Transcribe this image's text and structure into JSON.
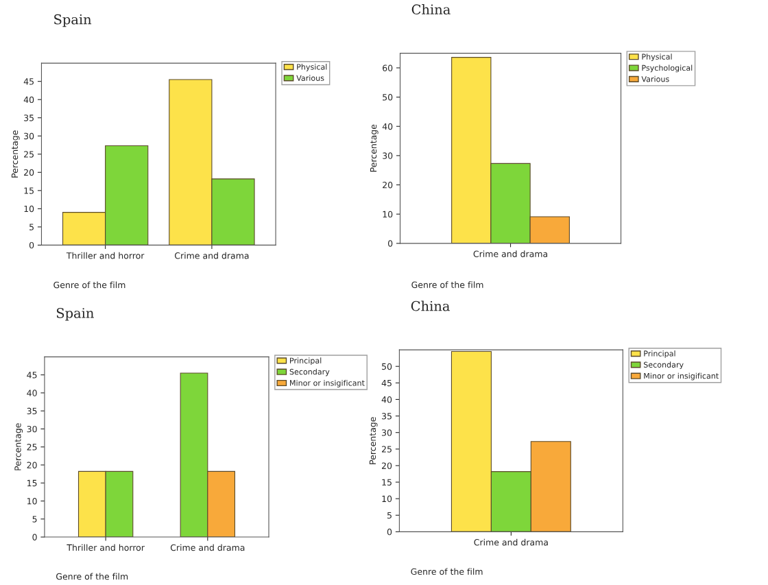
{
  "chart_data": [
    {
      "type": "bar",
      "title": "Spain",
      "xlabel": "Genre of the film",
      "ylabel": "Percentage",
      "categories": [
        "Thriller and horror",
        "Crime and drama"
      ],
      "ylim": [
        0,
        50
      ],
      "yticks": [
        0,
        5,
        10,
        15,
        20,
        25,
        30,
        35,
        40,
        45
      ],
      "legend": "top right",
      "series": [
        {
          "name": "Physical",
          "color": "#fde24a",
          "values": [
            9,
            45.5
          ]
        },
        {
          "name": "Various",
          "color": "#7ed63a",
          "values": [
            27.3,
            18.2
          ]
        }
      ]
    },
    {
      "type": "bar",
      "title": "China",
      "xlabel": "Genre of the film",
      "ylabel": "Percentage",
      "categories": [
        "Crime and drama"
      ],
      "ylim": [
        0,
        65
      ],
      "yticks": [
        0,
        10,
        20,
        30,
        40,
        50,
        60
      ],
      "legend": "top right",
      "series": [
        {
          "name": "Physical",
          "color": "#fde24a",
          "values": [
            63.6
          ]
        },
        {
          "name": "Psychological",
          "color": "#7ed63a",
          "values": [
            27.3
          ]
        },
        {
          "name": "Various",
          "color": "#f8a93a",
          "values": [
            9.1
          ]
        }
      ]
    },
    {
      "type": "bar",
      "title": "Spain",
      "xlabel": "Genre of the film",
      "ylabel": "Percentage",
      "categories": [
        "Thriller and horror",
        "Crime and drama"
      ],
      "ylim": [
        0,
        50
      ],
      "yticks": [
        0,
        5,
        10,
        15,
        20,
        25,
        30,
        35,
        40,
        45
      ],
      "legend": "top right",
      "series": [
        {
          "name": "Principal",
          "color": "#fde24a",
          "values": [
            18.2,
            null
          ]
        },
        {
          "name": "Secondary",
          "color": "#7ed63a",
          "values": [
            18.2,
            45.5
          ]
        },
        {
          "name": "Minor or insigificant",
          "color": "#f8a93a",
          "values": [
            null,
            18.2
          ]
        }
      ]
    },
    {
      "type": "bar",
      "title": "China",
      "xlabel": "Genre of the film",
      "ylabel": "Percentage",
      "categories": [
        "Crime and drama"
      ],
      "ylim": [
        0,
        55
      ],
      "yticks": [
        0,
        5,
        10,
        15,
        20,
        25,
        30,
        35,
        40,
        45,
        50
      ],
      "legend": "top right",
      "series": [
        {
          "name": "Principal",
          "color": "#fde24a",
          "values": [
            54.5
          ]
        },
        {
          "name": "Secondary",
          "color": "#7ed63a",
          "values": [
            18.2
          ]
        },
        {
          "name": "Minor or insigificant",
          "color": "#f8a93a",
          "values": [
            27.3
          ]
        }
      ]
    }
  ]
}
